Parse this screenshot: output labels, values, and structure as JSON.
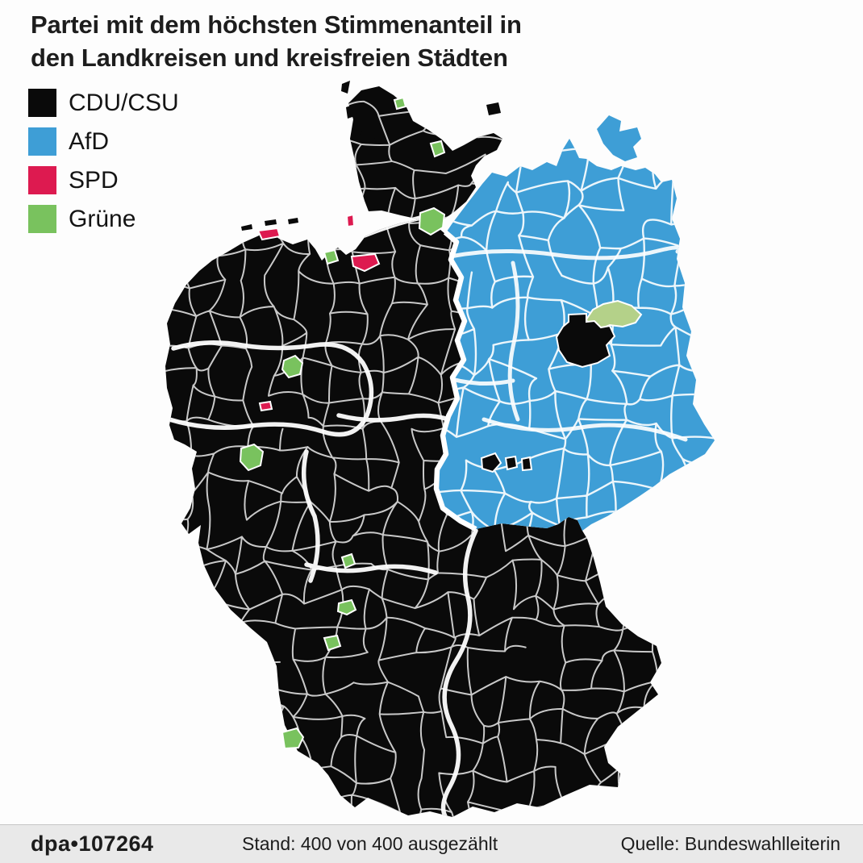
{
  "title": {
    "line1": "Partei mit dem höchsten Stimmenanteil in",
    "line2": "den Landkreisen und kreisfreien Städten"
  },
  "legend": {
    "items": [
      {
        "label": "CDU/CSU",
        "color_key": "cdu_csu"
      },
      {
        "label": "AfD",
        "color_key": "afd"
      },
      {
        "label": "SPD",
        "color_key": "spd"
      },
      {
        "label": "Grüne",
        "color_key": "gruene"
      }
    ]
  },
  "footer": {
    "logo": "dpa•107264",
    "status": "Stand: 400 von 400 ausgezählt",
    "source": "Quelle: Bundeswahlleiterin"
  },
  "colors": {
    "cdu_csu": "#0a0a0a",
    "afd": "#3e9ed6",
    "spd": "#dd1a50",
    "gruene": "#79c25e",
    "gruene_light": "#b4d189",
    "map_border": "#ffffff",
    "footer_bg": "#e9e9e9",
    "page_bg": "#fdfdfd"
  },
  "map": {
    "type": "choropleth",
    "region": "Deutschland",
    "unit": "Landkreise und kreisfreie Städte",
    "west_germany_majority": "CDU/CSU",
    "east_germany_majority": "AfD",
    "berlin_area_majority": "CDU/CSU",
    "visible_minority_districts": {
      "gruene_in_west": 10,
      "gruene_near_berlin": 1,
      "spd_in_northwest": 4,
      "cdu_csu_inside_east": 4
    }
  }
}
